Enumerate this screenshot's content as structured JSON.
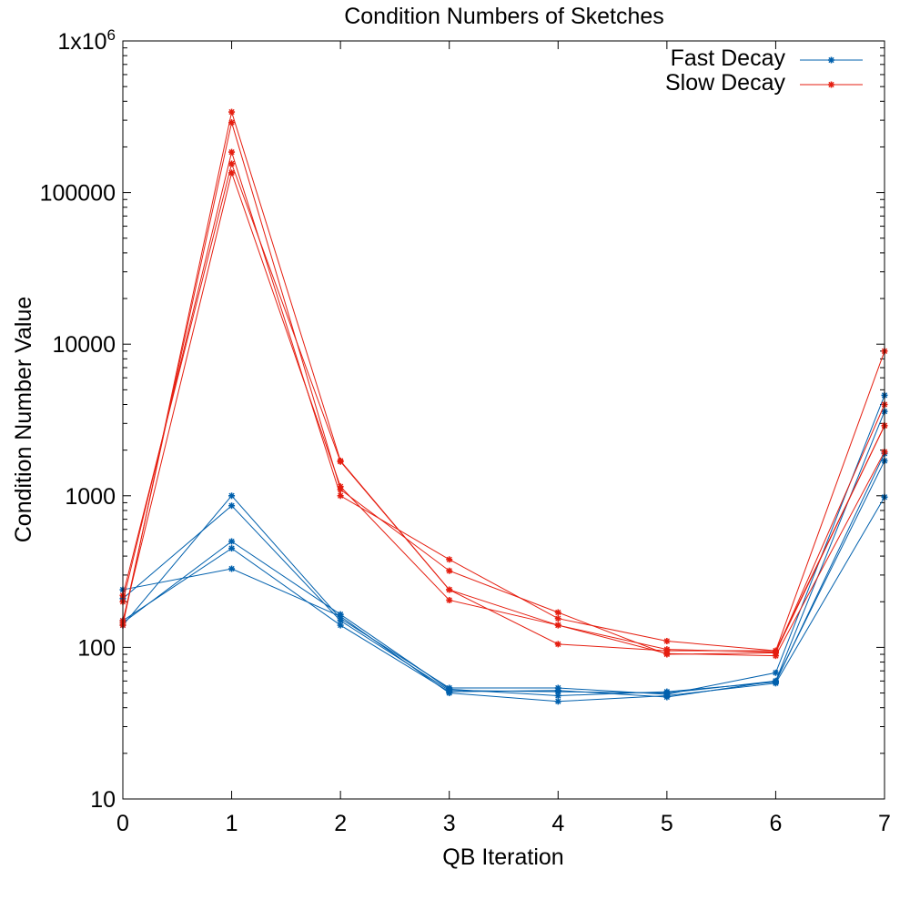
{
  "chart_data": {
    "type": "line",
    "title": "Condition Numbers of Sketches",
    "xlabel": "QB Iteration",
    "ylabel": "Condition Number Value",
    "xlim": [
      0,
      7
    ],
    "ylim": [
      10,
      1000000
    ],
    "yscale": "log",
    "x_ticks": [
      "0",
      "1",
      "2",
      "3",
      "4",
      "5",
      "6",
      "7"
    ],
    "y_ticks": [
      {
        "value": 10,
        "label": "10"
      },
      {
        "value": 100,
        "label": "100"
      },
      {
        "value": 1000,
        "label": "1000"
      },
      {
        "value": 10000,
        "label": "10000"
      },
      {
        "value": 100000,
        "label": "100000"
      },
      {
        "value": 1000000,
        "label": "1x10",
        "sup": "6"
      }
    ],
    "grid": false,
    "legend_position": "top-right",
    "x": [
      0,
      1,
      2,
      3,
      4,
      5,
      6,
      7
    ],
    "groups": [
      {
        "name": "Fast Decay",
        "color": "#0060ad",
        "runs": [
          [
            140,
            1000,
            155,
            54,
            54,
            49,
            68,
            4600
          ],
          [
            210,
            860,
            150,
            52,
            51,
            50,
            60,
            3600
          ],
          [
            145,
            500,
            165,
            53,
            48,
            51,
            59,
            1900
          ],
          [
            150,
            450,
            140,
            51,
            52,
            47,
            60,
            1700
          ],
          [
            240,
            330,
            160,
            50,
            44,
            48,
            58,
            980
          ]
        ]
      },
      {
        "name": "Slow Decay",
        "color": "#e51e10",
        "runs": [
          [
            140,
            340000,
            1700,
            240,
            105,
            95,
            95,
            9000
          ],
          [
            145,
            290000,
            1100,
            320,
            170,
            90,
            92,
            4000
          ],
          [
            200,
            185000,
            1000,
            380,
            155,
            110,
            95,
            2900
          ],
          [
            220,
            155000,
            1680,
            240,
            140,
            91,
            88,
            1950
          ],
          [
            150,
            135000,
            1150,
            205,
            140,
            97,
            93,
            2900
          ]
        ]
      }
    ]
  }
}
